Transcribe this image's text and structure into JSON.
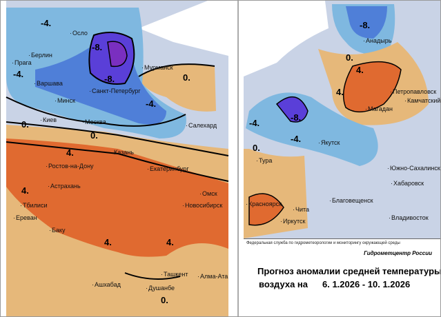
{
  "title_line1": "Прогноз аномалии средней температуры",
  "title_line2": "воздуха на",
  "date_range": "6. 1.2026 - 10. 1.2026",
  "agency": "Федеральная служба по гидрометеорологии и мониторингу окружающей среды",
  "center": "Гидрометцентр России",
  "colors": {
    "cold_strong": "#5a3fd8",
    "cold": "#4f7fd8",
    "cool": "#7fb8e0",
    "neutral": "#c9d3e6",
    "warm": "#e6b87a",
    "hot": "#e06a30"
  },
  "cities": [
    "Осло",
    "Берлин",
    "Прага",
    "Варшава",
    "Минск",
    "Киев",
    "Москва",
    "Санкт-Петербург",
    "Мурманск",
    "Салехард",
    "Казань",
    "Ростов-на-Дону",
    "Екатеринбург",
    "Астрахань",
    "Тбилиси",
    "Ереван",
    "Баку",
    "Омск",
    "Новосибирск",
    "Ташкент",
    "Алма-Ата",
    "Ашхабад",
    "Душанбе",
    "Анадырь",
    "Петропавловск",
    "Камчатский",
    "Магадан",
    "Якутск",
    "Тура",
    "Южно-Сахалинск",
    "Хабаровск",
    "Благовещенск",
    "Чита",
    "Красноярск",
    "Иркутск",
    "Владивосток"
  ],
  "contour_labels": [
    "-4.",
    "-8.",
    "0.",
    "4."
  ]
}
